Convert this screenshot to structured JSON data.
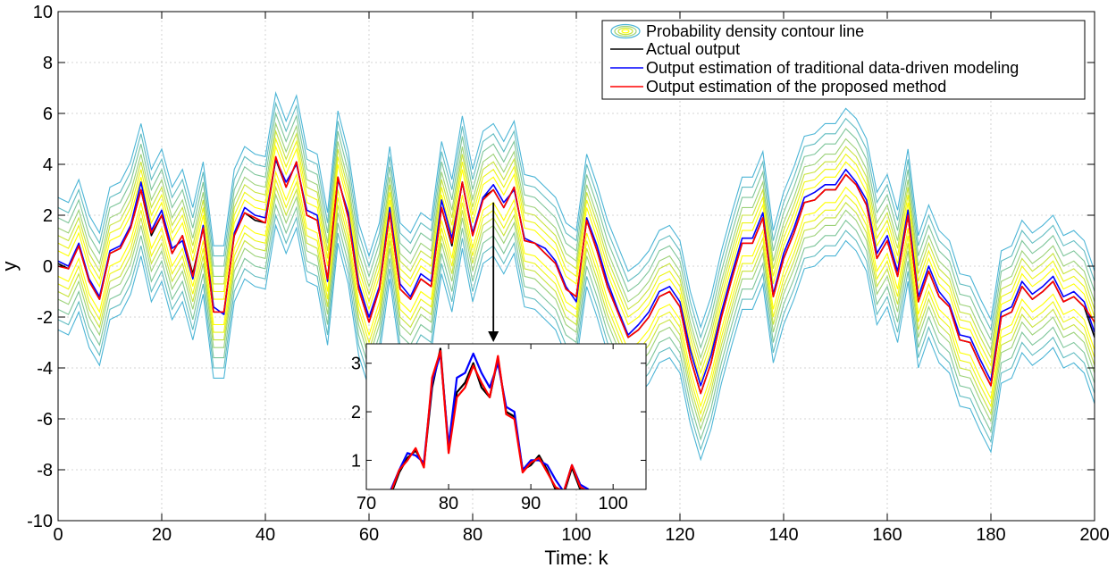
{
  "chart_data": {
    "type": "line",
    "title": "",
    "xlabel": "Time: k",
    "ylabel": "y",
    "xlim": [
      0,
      200
    ],
    "ylim": [
      -10,
      10
    ],
    "xticks": [
      0,
      20,
      40,
      60,
      80,
      100,
      120,
      140,
      160,
      180,
      200
    ],
    "yticks": [
      -10,
      -8,
      -6,
      -4,
      -2,
      0,
      2,
      4,
      6,
      8,
      10
    ],
    "grid": true,
    "legend_position": "top-right",
    "legend": [
      "Probability density contour line",
      "Actual output",
      "Output estimation of traditional data-driven modeling",
      "Output estimation of the proposed method"
    ],
    "contour_offsets": [
      0.5,
      0.8,
      1.1,
      1.4,
      1.8,
      2.2,
      2.6
    ],
    "contour_colors": [
      "#ffff00",
      "#eef514",
      "#c8e33c",
      "#9dd27a",
      "#7ec59a",
      "#61bcc1",
      "#4cb5d6"
    ],
    "series": [
      {
        "name": "Actual output",
        "color": "#000000",
        "x": [
          0,
          2,
          4,
          6,
          8,
          10,
          12,
          14,
          16,
          18,
          20,
          22,
          24,
          26,
          28,
          30,
          32,
          34,
          36,
          38,
          40,
          42,
          44,
          46,
          48,
          50,
          52,
          54,
          56,
          58,
          60,
          62,
          64,
          66,
          68,
          70,
          72,
          74,
          76,
          78,
          80,
          82,
          84,
          86,
          88,
          90,
          92,
          94,
          96,
          98,
          100,
          102,
          104,
          106,
          108,
          110,
          112,
          114,
          116,
          118,
          120,
          122,
          124,
          126,
          128,
          130,
          132,
          134,
          136,
          138,
          140,
          142,
          144,
          146,
          148,
          150,
          152,
          154,
          156,
          158,
          160,
          162,
          164,
          166,
          168,
          170,
          172,
          174,
          176,
          178,
          180,
          182,
          184,
          186,
          188,
          190,
          192,
          194,
          196,
          198,
          200
        ],
        "y": [
          0.1,
          -0.1,
          0.8,
          -0.6,
          -1.3,
          0.5,
          0.7,
          1.5,
          3.0,
          1.2,
          2.0,
          0.5,
          1.2,
          -0.3,
          1.5,
          -1.8,
          -1.8,
          1.2,
          2.1,
          1.8,
          1.7,
          4.2,
          3.1,
          4.1,
          2.0,
          1.8,
          -0.5,
          3.5,
          1.9,
          -0.9,
          -2.2,
          -0.9,
          2.1,
          -0.9,
          -1.3,
          -0.5,
          -0.8,
          2.3,
          0.8,
          3.3,
          1.2,
          2.7,
          3.0,
          2.3,
          3.1,
          1.0,
          0.9,
          0.5,
          0.1,
          -0.9,
          -1.2,
          1.8,
          0.6,
          -0.8,
          -1.8,
          -2.8,
          -2.5,
          -2.0,
          -1.2,
          -1.0,
          -1.6,
          -3.6,
          -5.0,
          -3.8,
          -2.0,
          -0.5,
          0.9,
          0.9,
          1.9,
          -1.2,
          0.3,
          1.3,
          2.5,
          2.6,
          3.0,
          3.0,
          3.6,
          3.2,
          2.4,
          0.3,
          1.0,
          -0.4,
          2.0,
          -1.4,
          -0.2,
          -1.2,
          -1.6,
          -2.9,
          -3.0,
          -3.9,
          -4.7,
          -2.0,
          -1.8,
          -0.8,
          -1.3,
          -1.0,
          -0.6,
          -1.4,
          -1.2,
          -1.6,
          -2.8
        ]
      },
      {
        "name": "Output estimation of traditional data-driven modeling",
        "color": "#0000ff",
        "x": [
          0,
          2,
          4,
          6,
          8,
          10,
          12,
          14,
          16,
          18,
          20,
          22,
          24,
          26,
          28,
          30,
          32,
          34,
          36,
          38,
          40,
          42,
          44,
          46,
          48,
          50,
          52,
          54,
          56,
          58,
          60,
          62,
          64,
          66,
          68,
          70,
          72,
          74,
          76,
          78,
          80,
          82,
          84,
          86,
          88,
          90,
          92,
          94,
          96,
          98,
          100,
          102,
          104,
          106,
          108,
          110,
          112,
          114,
          116,
          118,
          120,
          122,
          124,
          126,
          128,
          130,
          132,
          134,
          136,
          138,
          140,
          142,
          144,
          146,
          148,
          150,
          152,
          154,
          156,
          158,
          160,
          162,
          164,
          166,
          168,
          170,
          172,
          174,
          176,
          178,
          180,
          182,
          184,
          186,
          188,
          190,
          192,
          194,
          196,
          198,
          200
        ],
        "y": [
          0.2,
          0.0,
          0.9,
          -0.5,
          -1.2,
          0.6,
          0.8,
          1.6,
          3.3,
          1.4,
          2.2,
          0.7,
          1.0,
          -0.5,
          1.6,
          -1.6,
          -1.9,
          1.3,
          2.3,
          2.0,
          1.9,
          4.2,
          3.3,
          4.0,
          2.2,
          2.0,
          -0.6,
          3.4,
          2.1,
          -0.7,
          -2.0,
          -0.8,
          2.3,
          -0.7,
          -1.2,
          -0.3,
          -0.6,
          2.6,
          1.1,
          3.3,
          1.3,
          2.7,
          3.2,
          2.5,
          3.0,
          1.1,
          0.9,
          0.7,
          0.2,
          -0.8,
          -1.4,
          1.9,
          0.8,
          -0.6,
          -1.7,
          -2.7,
          -2.3,
          -1.8,
          -1.0,
          -0.8,
          -1.4,
          -3.3,
          -4.7,
          -3.5,
          -1.8,
          -0.3,
          1.1,
          1.1,
          2.1,
          -1.1,
          0.5,
          1.5,
          2.7,
          2.9,
          3.2,
          3.2,
          3.8,
          3.3,
          2.6,
          0.5,
          1.2,
          -0.2,
          2.2,
          -1.2,
          0.0,
          -1.0,
          -1.5,
          -2.7,
          -2.8,
          -3.7,
          -4.5,
          -1.8,
          -1.6,
          -0.6,
          -1.1,
          -0.8,
          -0.4,
          -1.2,
          -1.0,
          -1.4,
          -2.6
        ]
      },
      {
        "name": "Output estimation of the proposed method",
        "color": "#ff0000",
        "x": [
          0,
          2,
          4,
          6,
          8,
          10,
          12,
          14,
          16,
          18,
          20,
          22,
          24,
          26,
          28,
          30,
          32,
          34,
          36,
          38,
          40,
          42,
          44,
          46,
          48,
          50,
          52,
          54,
          56,
          58,
          60,
          62,
          64,
          66,
          68,
          70,
          72,
          74,
          76,
          78,
          80,
          82,
          84,
          86,
          88,
          90,
          92,
          94,
          96,
          98,
          100,
          102,
          104,
          106,
          108,
          110,
          112,
          114,
          116,
          118,
          120,
          122,
          124,
          126,
          128,
          130,
          132,
          134,
          136,
          138,
          140,
          142,
          144,
          146,
          148,
          150,
          152,
          154,
          156,
          158,
          160,
          162,
          164,
          166,
          168,
          170,
          172,
          174,
          176,
          178,
          180,
          182,
          184,
          186,
          188,
          190,
          192,
          194,
          196,
          198,
          200
        ],
        "y": [
          0.0,
          -0.1,
          0.8,
          -0.6,
          -1.3,
          0.5,
          0.7,
          1.5,
          3.0,
          1.3,
          2.0,
          0.5,
          1.2,
          -0.4,
          1.5,
          -1.8,
          -1.8,
          1.2,
          2.1,
          1.9,
          1.7,
          4.3,
          3.1,
          4.1,
          2.0,
          1.8,
          -0.5,
          3.5,
          1.9,
          -0.9,
          -2.2,
          -0.9,
          2.1,
          -0.9,
          -1.3,
          -0.5,
          -0.8,
          2.3,
          0.9,
          3.3,
          1.2,
          2.6,
          3.0,
          2.3,
          3.1,
          1.0,
          0.9,
          0.5,
          0.1,
          -0.9,
          -1.2,
          1.8,
          0.6,
          -0.8,
          -1.8,
          -2.8,
          -2.5,
          -2.0,
          -1.2,
          -1.0,
          -1.6,
          -3.6,
          -5.0,
          -3.8,
          -2.0,
          -0.5,
          0.9,
          0.9,
          1.9,
          -1.2,
          0.3,
          1.3,
          2.5,
          2.6,
          3.0,
          3.0,
          3.6,
          3.2,
          2.4,
          0.3,
          1.0,
          -0.4,
          2.0,
          -1.4,
          -0.2,
          -1.2,
          -1.6,
          -2.9,
          -3.0,
          -3.9,
          -4.7,
          -2.0,
          -1.8,
          -0.8,
          -1.3,
          -1.0,
          -0.6,
          -1.4,
          -1.2,
          -1.6,
          -2.2
        ]
      }
    ],
    "inset": {
      "xlim": [
        70,
        104
      ],
      "ylim": [
        0.4,
        3.4
      ],
      "xticks": [
        70,
        80,
        90,
        100
      ],
      "yticks": [
        1,
        2,
        3
      ],
      "arrow_from_x": 84,
      "series": [
        {
          "name": "Actual output",
          "color": "#000000",
          "x": [
            73,
            74,
            75,
            76,
            77,
            78,
            79,
            80,
            81,
            82,
            83,
            84,
            85,
            86,
            87,
            88,
            89,
            90,
            91,
            92,
            93,
            94,
            95,
            96,
            97
          ],
          "y": [
            0.3,
            0.75,
            1.05,
            1.2,
            0.9,
            2.5,
            3.3,
            1.2,
            2.4,
            2.6,
            3.0,
            2.5,
            2.3,
            3.1,
            2.0,
            1.9,
            0.8,
            0.9,
            1.1,
            0.8,
            0.4,
            0.3,
            0.85,
            0.4,
            0.3
          ]
        },
        {
          "name": "Output estimation of traditional data-driven modeling",
          "color": "#0000ff",
          "x": [
            73,
            74,
            75,
            76,
            77,
            78,
            79,
            80,
            81,
            82,
            83,
            84,
            85,
            86,
            87,
            88,
            89,
            90,
            91,
            92,
            93,
            94,
            95,
            96,
            97
          ],
          "y": [
            0.4,
            0.8,
            1.15,
            1.1,
            0.95,
            2.6,
            3.2,
            1.3,
            2.7,
            2.8,
            3.2,
            2.8,
            2.5,
            3.0,
            2.1,
            2.0,
            0.8,
            1.0,
            1.0,
            0.9,
            0.6,
            0.35,
            0.9,
            0.5,
            0.4
          ]
        },
        {
          "name": "Output estimation of the proposed method",
          "color": "#ff0000",
          "x": [
            73,
            74,
            75,
            76,
            77,
            78,
            79,
            80,
            81,
            82,
            83,
            84,
            85,
            86,
            87,
            88,
            89,
            90,
            91,
            92,
            93,
            94,
            95,
            96,
            97
          ],
          "y": [
            0.35,
            0.8,
            1.0,
            1.25,
            0.85,
            2.7,
            3.25,
            1.15,
            2.3,
            2.5,
            2.95,
            2.6,
            2.3,
            3.15,
            1.95,
            1.85,
            0.75,
            0.95,
            1.05,
            0.75,
            0.45,
            0.35,
            0.9,
            0.45,
            0.35
          ]
        }
      ]
    }
  }
}
